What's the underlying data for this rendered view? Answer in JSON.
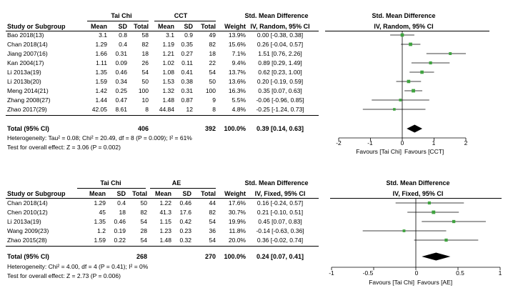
{
  "panel1": {
    "group1_label": "Tai Chi",
    "group2_label": "CCT",
    "effect_header": "Std. Mean Difference",
    "method_header": "IV, Random, 95% CI",
    "plot_header": "Std. Mean Difference",
    "plot_method": "IV, Random, 95% CI",
    "columns": {
      "study": "Study or Subgroup",
      "mean1": "Mean",
      "sd1": "SD",
      "total1": "Total",
      "mean2": "Mean",
      "sd2": "SD",
      "total2": "Total",
      "weight": "Weight"
    },
    "rows": [
      {
        "study": "Bao 2018(13)",
        "mean1": "3.1",
        "sd1": "0.8",
        "total1": "58",
        "mean2": "3.1",
        "sd2": "0.9",
        "total2": "49",
        "weight": "13.9%",
        "ci": "0.00 [-0.38, 0.38]"
      },
      {
        "study": "Chan 2018(14)",
        "mean1": "1.29",
        "sd1": "0.4",
        "total1": "82",
        "mean2": "1.19",
        "sd2": "0.35",
        "total2": "82",
        "weight": "15.6%",
        "ci": "0.26 [-0.04, 0.57]"
      },
      {
        "study": "Jiang 2007(16)",
        "mean1": "1.66",
        "sd1": "0.31",
        "total1": "18",
        "mean2": "1.21",
        "sd2": "0.27",
        "total2": "18",
        "weight": "7.1%",
        "ci": "1.51 [0.76, 2.26]"
      },
      {
        "study": "Kan 2004(17)",
        "mean1": "1.11",
        "sd1": "0.09",
        "total1": "26",
        "mean2": "1.02",
        "sd2": "0.11",
        "total2": "22",
        "weight": "9.4%",
        "ci": "0.89 [0.29, 1.49]"
      },
      {
        "study": "Li 2013a(19)",
        "mean1": "1.35",
        "sd1": "0.46",
        "total1": "54",
        "mean2": "1.08",
        "sd2": "0.41",
        "total2": "54",
        "weight": "13.7%",
        "ci": "0.62 [0.23, 1.00]"
      },
      {
        "study": "Li 2013b(20)",
        "mean1": "1.59",
        "sd1": "0.34",
        "total1": "50",
        "mean2": "1.53",
        "sd2": "0.38",
        "total2": "50",
        "weight": "13.6%",
        "ci": "0.20 [-0.19, 0.59]"
      },
      {
        "study": "Meng 2014(21)",
        "mean1": "1.42",
        "sd1": "0.25",
        "total1": "100",
        "mean2": "1.32",
        "sd2": "0.31",
        "total2": "100",
        "weight": "16.3%",
        "ci": "0.35 [0.07, 0.63]"
      },
      {
        "study": "Zhang 2008(27)",
        "mean1": "1.44",
        "sd1": "0.47",
        "total1": "10",
        "mean2": "1.48",
        "sd2": "0.87",
        "total2": "9",
        "weight": "5.5%",
        "ci": "-0.06 [-0.96, 0.85]"
      },
      {
        "study": "Zhao 2017(29)",
        "mean1": "42.05",
        "sd1": "8.61",
        "total1": "8",
        "mean2": "44.84",
        "sd2": "12",
        "total2": "8",
        "weight": "4.8%",
        "ci": "-0.25 [-1.24, 0.73]"
      }
    ],
    "total": {
      "label": "Total (95% CI)",
      "total1": "406",
      "total2": "392",
      "weight": "100.0%",
      "ci": "0.39 [0.14, 0.63]"
    },
    "heterogeneity": "Heterogeneity: Tau² = 0.08; Chi² = 20.49, df = 8 (P = 0.009); I² = 61%",
    "overall_effect": "Test for overall effect: Z = 3.06 (P = 0.002)",
    "axis_ticks": [
      "-2",
      "-1",
      "0",
      "1",
      "2"
    ],
    "favours_left": "Favours [Tai Chi]",
    "favours_right": "Favours [CCT]",
    "point_color": "#3fa33f"
  },
  "panel2": {
    "group1_label": "Tai Chi",
    "group2_label": "AE",
    "effect_header": "Std. Mean Difference",
    "method_header": "IV, Fixed, 95% CI",
    "plot_header": "Std. Mean Difference",
    "plot_method": "IV, Fixed, 95% CI",
    "columns": {
      "study": "Study or Subgroup",
      "mean1": "Mean",
      "sd1": "SD",
      "total1": "Total",
      "mean2": "Mean",
      "sd2": "SD",
      "total2": "Total",
      "weight": "Weight"
    },
    "rows": [
      {
        "study": "Chan 2018(14)",
        "mean1": "1.29",
        "sd1": "0.4",
        "total1": "50",
        "mean2": "1.22",
        "sd2": "0.46",
        "total2": "44",
        "weight": "17.6%",
        "ci": "0.16 [-0.24, 0.57]"
      },
      {
        "study": "Chen 2010(12)",
        "mean1": "45",
        "sd1": "18",
        "total1": "82",
        "mean2": "41.3",
        "sd2": "17.6",
        "total2": "82",
        "weight": "30.7%",
        "ci": "0.21 [-0.10, 0.51]"
      },
      {
        "study": "Li 2013a(19)",
        "mean1": "1.35",
        "sd1": "0.46",
        "total1": "54",
        "mean2": "1.15",
        "sd2": "0.42",
        "total2": "54",
        "weight": "19.9%",
        "ci": "0.45 [0.07, 0.83]"
      },
      {
        "study": "Wang 2009(23)",
        "mean1": "1.2",
        "sd1": "0.19",
        "total1": "28",
        "mean2": "1.23",
        "sd2": "0.23",
        "total2": "36",
        "weight": "11.8%",
        "ci": "-0.14 [-0.63, 0.36]"
      },
      {
        "study": "Zhao 2015(28)",
        "mean1": "1.59",
        "sd1": "0.22",
        "total1": "54",
        "mean2": "1.48",
        "sd2": "0.32",
        "total2": "54",
        "weight": "20.0%",
        "ci": "0.36 [-0.02, 0.74]"
      }
    ],
    "total": {
      "label": "Total (95% CI)",
      "total1": "268",
      "total2": "270",
      "weight": "100.0%",
      "ci": "0.24 [0.07, 0.41]"
    },
    "heterogeneity": "Heterogeneity: Chi² = 4.00, df = 4 (P = 0.41); I² = 0%",
    "overall_effect": "Test for overall effect: Z = 2.73 (P = 0.006)",
    "axis_ticks": [
      "-1",
      "-0.5",
      "0",
      "0.5",
      "1"
    ],
    "favours_left": "Favours [Tai Chi]",
    "favours_right": "Favours [AE]",
    "point_color": "#3fa33f"
  },
  "chart_data": [
    {
      "type": "forest",
      "xlim": [
        -2,
        2
      ],
      "series": [
        {
          "values": [
            {
              "est": 0.0,
              "lo": -0.38,
              "hi": 0.38,
              "weight": 13.9
            },
            {
              "est": 0.26,
              "lo": -0.04,
              "hi": 0.57,
              "weight": 15.6
            },
            {
              "est": 1.51,
              "lo": 0.76,
              "hi": 2.26,
              "weight": 7.1
            },
            {
              "est": 0.89,
              "lo": 0.29,
              "hi": 1.49,
              "weight": 9.4
            },
            {
              "est": 0.62,
              "lo": 0.23,
              "hi": 1.0,
              "weight": 13.7
            },
            {
              "est": 0.2,
              "lo": -0.19,
              "hi": 0.59,
              "weight": 13.6
            },
            {
              "est": 0.35,
              "lo": 0.07,
              "hi": 0.63,
              "weight": 16.3
            },
            {
              "est": -0.06,
              "lo": -0.96,
              "hi": 0.85,
              "weight": 5.5
            },
            {
              "est": -0.25,
              "lo": -1.24,
              "hi": 0.73,
              "weight": 4.8
            }
          ]
        }
      ],
      "summary": {
        "est": 0.39,
        "lo": 0.14,
        "hi": 0.63
      }
    },
    {
      "type": "forest",
      "xlim": [
        -1,
        1
      ],
      "series": [
        {
          "values": [
            {
              "est": 0.16,
              "lo": -0.24,
              "hi": 0.57,
              "weight": 17.6
            },
            {
              "est": 0.21,
              "lo": -0.1,
              "hi": 0.51,
              "weight": 30.7
            },
            {
              "est": 0.45,
              "lo": 0.07,
              "hi": 0.83,
              "weight": 19.9
            },
            {
              "est": -0.14,
              "lo": -0.63,
              "hi": 0.36,
              "weight": 11.8
            },
            {
              "est": 0.36,
              "lo": -0.02,
              "hi": 0.74,
              "weight": 20.0
            }
          ]
        }
      ],
      "summary": {
        "est": 0.24,
        "lo": 0.07,
        "hi": 0.41
      }
    }
  ]
}
